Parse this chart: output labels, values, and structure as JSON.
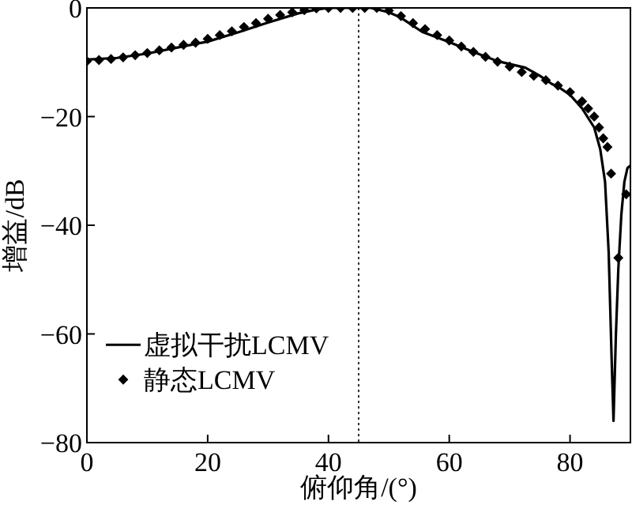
{
  "chart_data": {
    "type": "line",
    "xlabel": "俯仰角/(°)",
    "ylabel": "增益/dB",
    "xlim": [
      0,
      90
    ],
    "ylim": [
      -80,
      0
    ],
    "xticks": [
      0,
      20,
      40,
      60,
      80
    ],
    "yticks": [
      -80,
      -60,
      -40,
      -20,
      0
    ],
    "grid": false,
    "legend": "bottom left",
    "ref_lines": [
      {
        "axis": "x",
        "value": 45,
        "line_style": "dotted",
        "color": "#000000"
      }
    ],
    "series": [
      {
        "name": "虚拟干扰LCMV",
        "color": "#000000",
        "marker": "none",
        "line_style": "solid",
        "x": [
          0,
          5,
          10,
          15,
          20,
          25,
          30,
          35,
          38,
          40,
          44,
          47,
          50,
          52,
          55.5,
          60,
          64,
          68,
          72.6,
          75,
          77,
          78,
          80,
          82,
          84,
          85,
          85.8,
          86.4,
          86.9,
          87.2,
          87.6,
          88,
          88.5,
          89,
          89.5,
          90
        ],
        "values": [
          -9.5,
          -9.2,
          -8.4,
          -7.3,
          -6.2,
          -4.5,
          -2.7,
          -1,
          -0.3,
          0,
          0,
          0,
          -0.8,
          -1.8,
          -4.4,
          -6.3,
          -8.1,
          -9.8,
          -11,
          -12.5,
          -14,
          -14.5,
          -16,
          -18.5,
          -22,
          -26,
          -32,
          -45,
          -65,
          -76,
          -60,
          -48,
          -38,
          -32,
          -29.5,
          -29
        ]
      },
      {
        "name": "静态LCMV",
        "type": "scatter",
        "color": "#000000",
        "marker": "diamond",
        "x": [
          0,
          2,
          4,
          6,
          8,
          10,
          12,
          14,
          16,
          18,
          20,
          22,
          24,
          26,
          28,
          30,
          32,
          34,
          36,
          38,
          40,
          42,
          44,
          46,
          48,
          50,
          52,
          54,
          56,
          58,
          60,
          62,
          64,
          66,
          68,
          70,
          72,
          74,
          76,
          78,
          80,
          82,
          83,
          84,
          84.8,
          85.5,
          86.2,
          86.8,
          88,
          89.3
        ],
        "values": [
          -9.8,
          -9.6,
          -9.4,
          -9.1,
          -8.7,
          -8.3,
          -7.8,
          -7.3,
          -6.8,
          -6.4,
          -5.7,
          -5,
          -4.3,
          -3.5,
          -2.8,
          -2,
          -1.3,
          -0.8,
          -0.4,
          -0.1,
          0,
          0,
          0,
          0,
          0,
          -0.5,
          -1.5,
          -2.8,
          -3.9,
          -5,
          -6,
          -7.1,
          -8.1,
          -9,
          -9.9,
          -10.8,
          -11.8,
          -12.5,
          -13.3,
          -14.3,
          -15.5,
          -17.2,
          -18.5,
          -20,
          -22,
          -24,
          -25.6,
          -30.5,
          -46,
          -34.3
        ]
      }
    ]
  }
}
